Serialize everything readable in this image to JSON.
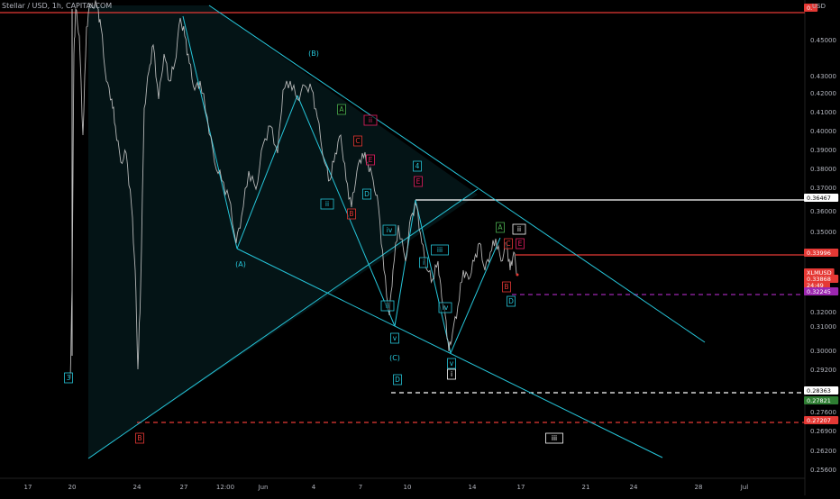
{
  "header": {
    "title": "Stellar / USD, 1h, CAPITALCOM",
    "currency": "USD"
  },
  "price_axis": {
    "ticks": [
      "0.45000",
      "0.43000",
      "0.42000",
      "0.41000",
      "0.40000",
      "0.39000",
      "0.38000",
      "0.37000",
      "0.36000",
      "0.35000",
      "0.32000",
      "0.31000",
      "0.30000",
      "0.29200",
      "0.27600",
      "0.26900",
      "0.26200",
      "0.25600"
    ]
  },
  "time_axis": {
    "ticks": [
      "17",
      "20",
      "24",
      "27",
      "12:00",
      "Jun",
      "4",
      "7",
      "10",
      "14",
      "17",
      "21",
      "24",
      "28",
      "Jul"
    ]
  },
  "price_labels": [
    {
      "text": "0.",
      "color": "#e53935"
    },
    {
      "text": "0.36467",
      "color": "#ffffff"
    },
    {
      "text": "0.33996",
      "color": "#e53935"
    },
    {
      "text": "XLMUSD",
      "color": "#e53935"
    },
    {
      "text": "0.33868",
      "color": "#e53935"
    },
    {
      "text": "24:49",
      "color": "#e53935"
    },
    {
      "text": "0.32245",
      "color": "#9c27b0"
    },
    {
      "text": "0.28363",
      "color": "#ffffff"
    },
    {
      "text": "0.27821",
      "color": "#2e7d32"
    },
    {
      "text": "0.27207",
      "color": "#e53935"
    }
  ],
  "wave_labels": [
    {
      "text": "(B)",
      "color": "#26c6da"
    },
    {
      "text": "(A)",
      "color": "#26c6da"
    },
    {
      "text": "(C)",
      "color": "#26c6da"
    },
    {
      "text": "A",
      "color": "#4caf50"
    },
    {
      "text": "A",
      "color": "#4caf50"
    },
    {
      "text": "B",
      "color": "#e53935"
    },
    {
      "text": "B",
      "color": "#e53935"
    },
    {
      "text": "B",
      "color": "#e53935"
    },
    {
      "text": "C",
      "color": "#e53935"
    },
    {
      "text": "C",
      "color": "#e53935"
    },
    {
      "text": "D",
      "color": "#26c6da"
    },
    {
      "text": "D",
      "color": "#26c6da"
    },
    {
      "text": "D",
      "color": "#26c6da"
    },
    {
      "text": "E",
      "color": "#e91e63"
    },
    {
      "text": "E",
      "color": "#e91e63"
    },
    {
      "text": "E",
      "color": "#e91e63"
    },
    {
      "text": "4",
      "color": "#26c6da"
    },
    {
      "text": "3",
      "color": "#26c6da"
    },
    {
      "text": "ii",
      "color": "#e91e63"
    },
    {
      "text": "ii",
      "color": "#ffffff"
    },
    {
      "text": "iii",
      "color": "#ffffff"
    },
    {
      "text": "i",
      "color": "#ffffff"
    },
    {
      "text": "iv",
      "color": "#26c6da"
    },
    {
      "text": "ii",
      "color": "#26c6da"
    },
    {
      "text": "v",
      "color": "#26c6da"
    },
    {
      "text": "iii",
      "color": "#26c6da"
    },
    {
      "text": "i",
      "color": "#26c6da"
    },
    {
      "text": "iv",
      "color": "#26c6da"
    },
    {
      "text": "v",
      "color": "#26c6da"
    },
    {
      "text": "ii",
      "color": "#26c6da"
    }
  ],
  "chart_data": {
    "type": "line",
    "symbol": "XLMUSD",
    "timeframe": "1h",
    "source": "CAPITALCOM",
    "ylim": [
      0.256,
      0.46
    ],
    "last_price": 0.33868,
    "horizontal_levels": [
      {
        "value": 0.36467,
        "color": "#ffffff",
        "style": "solid"
      },
      {
        "value": 0.33996,
        "color": "#e53935",
        "style": "solid"
      },
      {
        "value": 0.32245,
        "color": "#9c27b0",
        "style": "dashed"
      },
      {
        "value": 0.28363,
        "color": "#ffffff",
        "style": "dashed"
      },
      {
        "value": 0.27207,
        "color": "#e53935",
        "style": "dashed"
      }
    ],
    "colors": {
      "background": "#000000",
      "price": "#c8c8c8",
      "pattern": "#26c6da",
      "resistance": "#e53935",
      "support": "#26a69a"
    }
  }
}
